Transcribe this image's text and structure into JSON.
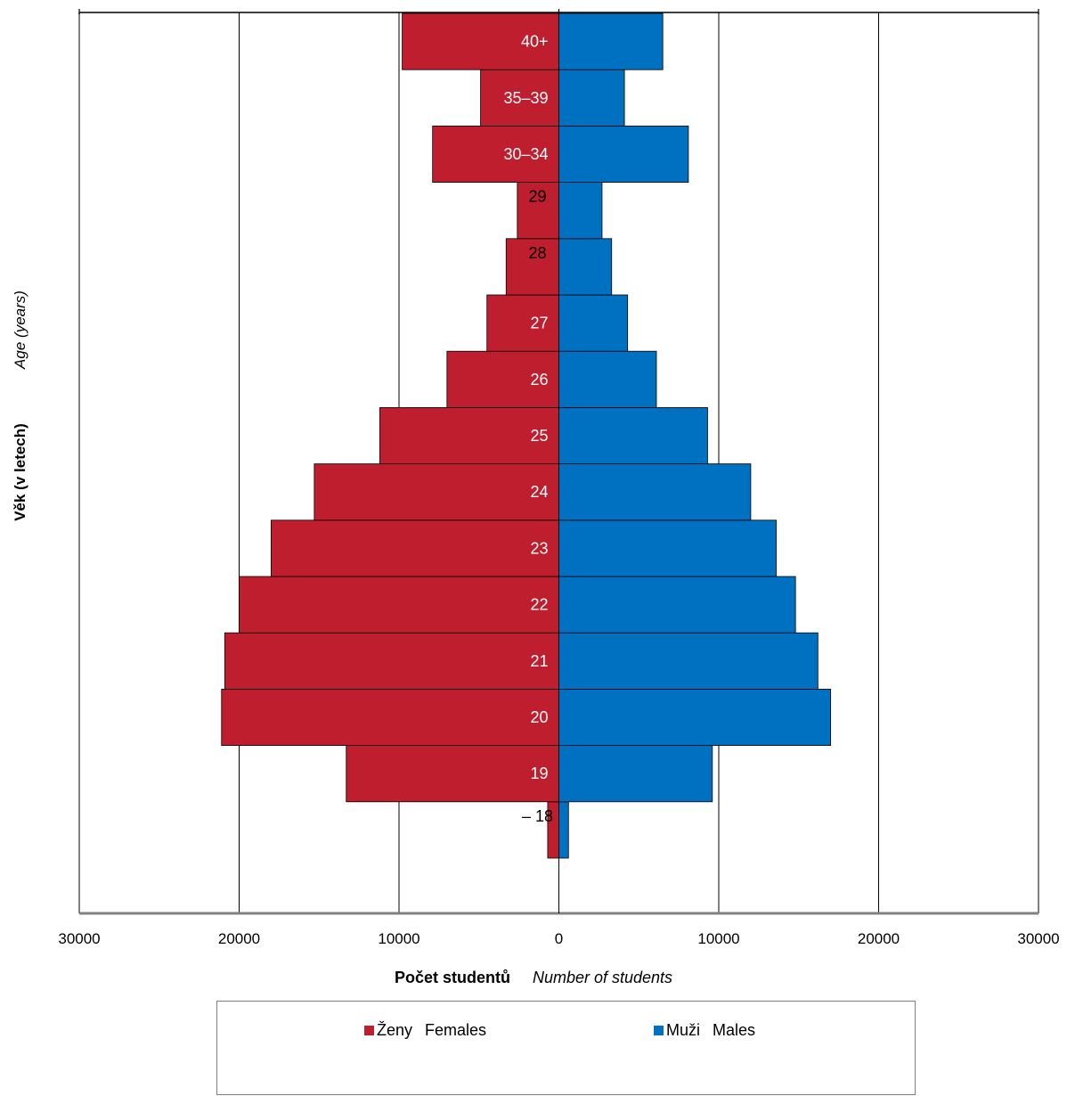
{
  "chart_data": {
    "type": "bar",
    "orientation": "horizontal-pyramid",
    "categories": [
      "– 18",
      "19",
      "20",
      "21",
      "22",
      "23",
      "24",
      "25",
      "26",
      "27",
      "28",
      "29",
      "30–34",
      "35–39",
      "40+"
    ],
    "series": [
      {
        "name": "Ženy",
        "name_en": "Females",
        "color": "#be1e2d",
        "values": [
          700,
          13300,
          21100,
          20900,
          20000,
          18000,
          15300,
          11200,
          7000,
          4500,
          3300,
          2600,
          7900,
          4900,
          9800
        ]
      },
      {
        "name": "Muži",
        "name_en": "Males",
        "color": "#0070c0",
        "values": [
          600,
          9600,
          17000,
          16200,
          14800,
          13600,
          12000,
          9300,
          6100,
          4300,
          3300,
          2700,
          8100,
          4100,
          6500
        ]
      }
    ],
    "xlim": [
      -30000,
      30000
    ],
    "xticks": [
      -30000,
      -20000,
      -10000,
      0,
      10000,
      20000,
      30000
    ],
    "xtick_labels": [
      "30000",
      "20000",
      "10000",
      "0",
      "10000",
      "20000",
      "30000"
    ],
    "xlabel": "Počet studentů",
    "xlabel_en": "Number of students",
    "ylabel": "Věk (v letech)",
    "ylabel_en": "Age (years)",
    "grid": true,
    "legend_placement": "bottom"
  }
}
